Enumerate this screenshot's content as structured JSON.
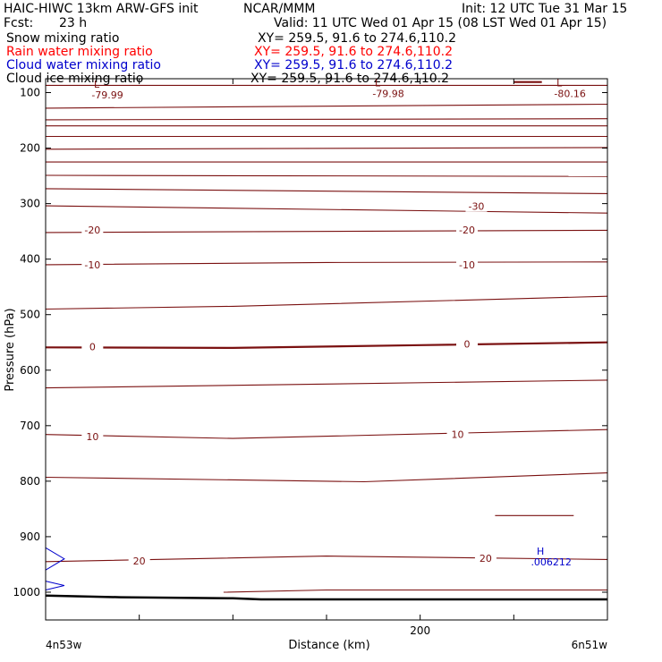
{
  "header": {
    "model": "HAIC-HIWC 13km ARW-GFS init",
    "org": "NCAR/MMM",
    "init": "Init: 12 UTC Tue 31 Mar 15",
    "fcst_label": "Fcst:",
    "fcst_value": "23 h",
    "valid": "Valid: 11 UTC Wed 01 Apr 15 (08 LST Wed 01 Apr 15)"
  },
  "fields": [
    {
      "name": "Snow mixing ratio",
      "xy": "XY= 259.5, 91.6 to 274.6,110.2",
      "color": "#000000"
    },
    {
      "name": "Rain water mixing ratio",
      "xy": "XY= 259.5, 91.6 to 274.6,110.2",
      "color": "#ff0000"
    },
    {
      "name": "Cloud water mixing ratio",
      "xy": "XY= 259.5, 91.6 to 274.6,110.2",
      "color": "#0000cc"
    },
    {
      "name": "Cloud ice mixing ratio",
      "xy": "XY= 259.5, 91.6 to 274.6,110.2",
      "color": "#000000"
    }
  ],
  "chart_data": {
    "type": "line",
    "xlabel": "Distance (km)",
    "ylabel": "Pressure (hPa)",
    "xlim": [
      0,
      300
    ],
    "ylim": [
      1050,
      75
    ],
    "x_ticks": [
      0,
      50,
      100,
      150,
      200,
      250,
      300
    ],
    "x_tick_labels": [
      {
        "x": 200,
        "text": "200"
      }
    ],
    "y_ticks": [
      100,
      200,
      300,
      400,
      500,
      600,
      700,
      800,
      900,
      1000
    ],
    "y_tick_labels": [
      "100",
      "200",
      "300",
      "400",
      "500",
      "600",
      "700",
      "800",
      "900",
      "1000"
    ],
    "x_endpoints": {
      "left": "4n53w",
      "right": "6n51w"
    },
    "isotherm_color": "#7a1010",
    "isotherms": [
      {
        "x": [
          0,
          300
        ],
        "p": [
          87,
          87
        ],
        "label": ""
      },
      {
        "x": [
          0,
          300
        ],
        "p": [
          128,
          121
        ],
        "label": ""
      },
      {
        "x": [
          0,
          300
        ],
        "p": [
          149,
          147
        ],
        "label": ""
      },
      {
        "x": [
          0,
          300
        ],
        "p": [
          160,
          160
        ],
        "label": ""
      },
      {
        "x": [
          0,
          300
        ],
        "p": [
          179,
          179
        ],
        "label": ""
      },
      {
        "x": [
          0,
          300
        ],
        "p": [
          202,
          199
        ],
        "label": ""
      },
      {
        "x": [
          0,
          300
        ],
        "p": [
          225,
          225
        ],
        "label": ""
      },
      {
        "x": [
          0,
          300
        ],
        "p": [
          249,
          251
        ],
        "label": ""
      },
      {
        "x": [
          0,
          300
        ],
        "p": [
          273,
          282
        ],
        "label": ""
      },
      {
        "x": [
          0,
          300
        ],
        "p": [
          304,
          317
        ],
        "label": ""
      },
      {
        "x": [
          0,
          300
        ],
        "p": [
          352,
          348
        ],
        "label": "-20"
      },
      {
        "x": [
          0,
          150,
          300
        ],
        "p": [
          410,
          406,
          405
        ],
        "label": "-10"
      },
      {
        "x": [
          0,
          100,
          300
        ],
        "p": [
          490,
          485,
          467
        ],
        "label": ""
      },
      {
        "x": [
          0,
          100,
          200,
          300
        ],
        "p": [
          559,
          560,
          555,
          550
        ],
        "label": "0",
        "heavy": true
      },
      {
        "x": [
          0,
          300
        ],
        "p": [
          632,
          618
        ],
        "label": ""
      },
      {
        "x": [
          0,
          100,
          300
        ],
        "p": [
          716,
          723,
          707
        ],
        "label": "10"
      },
      {
        "x": [
          0,
          170,
          300
        ],
        "p": [
          793,
          801,
          785
        ],
        "label": ""
      },
      {
        "x": [
          0,
          150,
          300
        ],
        "p": [
          945,
          935,
          941
        ],
        "label": "20"
      },
      {
        "x": [
          95,
          150,
          300
        ],
        "p": [
          1000,
          996,
          996
        ],
        "label": ""
      },
      {
        "x": [
          240,
          282
        ],
        "p": [
          862,
          862
        ],
        "label": ""
      },
      {
        "x": [
          250,
          265
        ],
        "p": [
          81,
          81
        ],
        "label": "",
        "heavy": true
      }
    ],
    "isotherm_labels": [
      {
        "x": 230,
        "p": 305,
        "text": "-30"
      },
      {
        "x": 25,
        "p": 347,
        "text": "-20"
      },
      {
        "x": 225,
        "p": 347,
        "text": "-20"
      },
      {
        "x": 25,
        "p": 410,
        "text": "-10"
      },
      {
        "x": 225,
        "p": 410,
        "text": "-10"
      },
      {
        "x": 25,
        "p": 558,
        "text": "0"
      },
      {
        "x": 225,
        "p": 553,
        "text": "0"
      },
      {
        "x": 25,
        "p": 720,
        "text": "10"
      },
      {
        "x": 220,
        "p": 716,
        "text": "10"
      },
      {
        "x": 50,
        "p": 944,
        "text": "20"
      },
      {
        "x": 235,
        "p": 939,
        "text": "20"
      }
    ],
    "extrema": [
      {
        "x": 33,
        "p": 85,
        "mark": "L",
        "value": "-79.99",
        "color": "#7a1010"
      },
      {
        "x": 183,
        "p": 82,
        "mark": "L",
        "value": "-79.98",
        "color": "#7a1010"
      },
      {
        "x": 280,
        "p": 82,
        "mark": "L",
        "value": "-80.16",
        "color": "#7a1010"
      },
      {
        "x": 270,
        "p": 926,
        "mark": "H",
        "value": ".006212",
        "color": "#0000cc"
      }
    ],
    "cloud_water_contours": [
      {
        "x": [
          0,
          10,
          0
        ],
        "p": [
          920,
          940,
          960
        ]
      },
      {
        "x": [
          0,
          10,
          0
        ],
        "p": [
          980,
          988,
          996
        ]
      }
    ],
    "terrain": {
      "x": [
        0,
        40,
        100,
        115,
        300
      ],
      "p": [
        1006,
        1009,
        1011,
        1013,
        1013
      ]
    }
  }
}
